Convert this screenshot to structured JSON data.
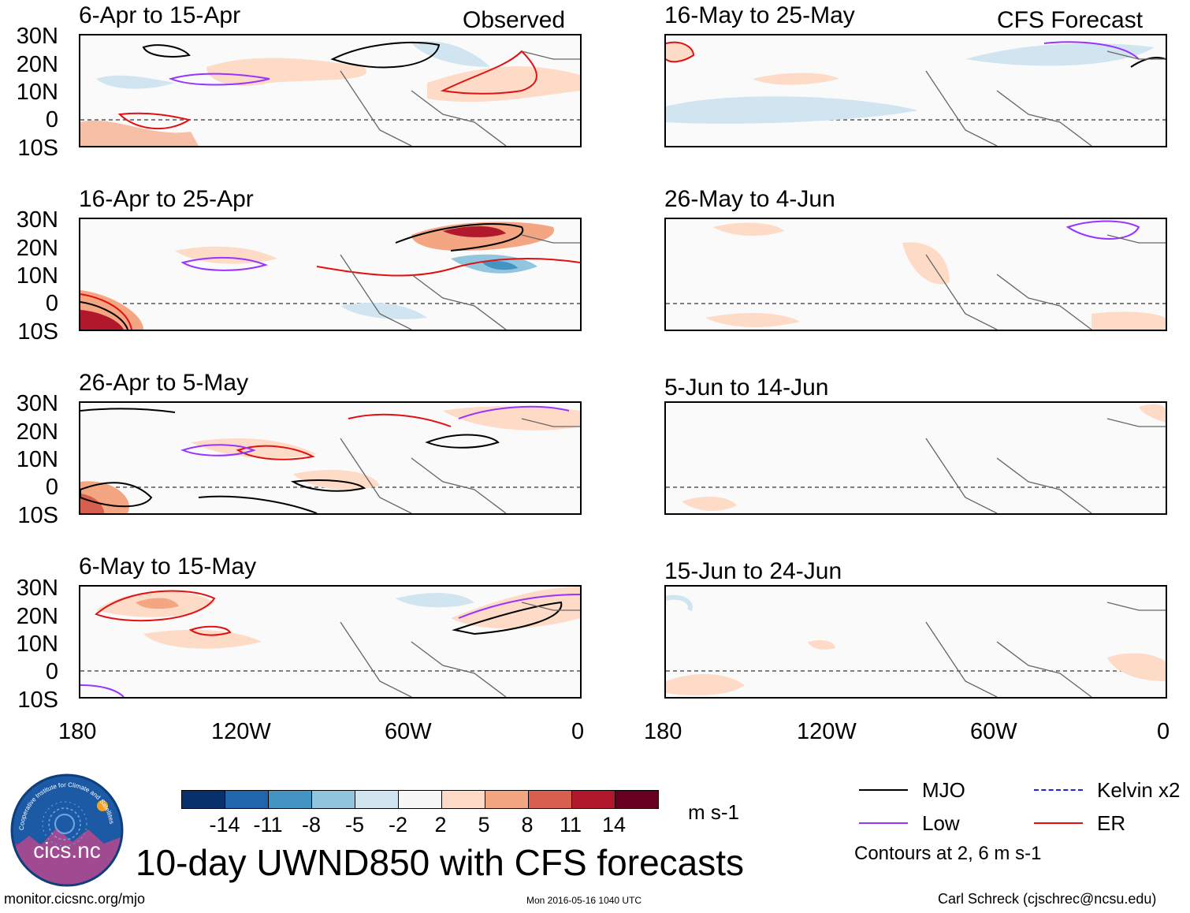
{
  "labels": {
    "observed": "Observed",
    "forecast": "CFS Forecast",
    "lat": [
      "30N",
      "20N",
      "10N",
      "0",
      "10S"
    ],
    "lon": [
      "180",
      "120W",
      "60W",
      "0"
    ]
  },
  "panels_left": [
    {
      "title": "6-Apr to 15-Apr"
    },
    {
      "title": "16-Apr to 25-Apr"
    },
    {
      "title": "26-Apr to 5-May"
    },
    {
      "title": "6-May to 15-May"
    }
  ],
  "panels_right": [
    {
      "title": "16-May to 25-May"
    },
    {
      "title": "26-May to 4-Jun"
    },
    {
      "title": "5-Jun to 14-Jun"
    },
    {
      "title": "15-Jun to 24-Jun"
    }
  ],
  "colorbar": {
    "labels": [
      "-14",
      "-11",
      "-8",
      "-5",
      "-2",
      "2",
      "5",
      "8",
      "11",
      "14"
    ],
    "units": "m s-1",
    "colors": [
      "#08306b",
      "#2166ac",
      "#4393c3",
      "#92c5de",
      "#d1e5f0",
      "#f7f7f7",
      "#fddbc7",
      "#f4a582",
      "#d6604d",
      "#b2182b",
      "#67001f"
    ]
  },
  "legend": {
    "items": [
      {
        "label": "MJO",
        "color": "#000000"
      },
      {
        "label": "Low",
        "color": "#9933ff"
      },
      {
        "label": "Kelvin x2",
        "color": "#2222dd"
      },
      {
        "label": "ER",
        "color": "#e11111"
      }
    ],
    "note": "Contours at 2, 6 m s-1"
  },
  "logo_text": "cics.nc",
  "logo_ring_text": "Cooperative Institute for Climate and Satellites",
  "main_title": "10-day UWND850 with CFS forecasts",
  "footer": {
    "url": "monitor.cicsnc.org/mjo",
    "timestamp": "Mon 2016-05-16 1040 UTC",
    "author": "Carl Schreck (cjschrec@ncsu.edu)"
  }
}
